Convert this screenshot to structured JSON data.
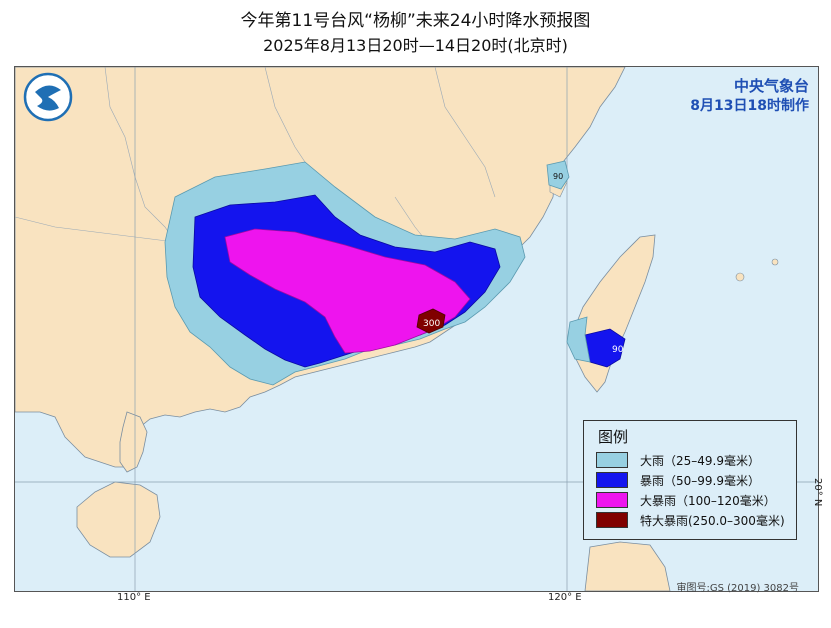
{
  "title": "今年第11号台风“杨柳”未来24小时降水预报图",
  "subtitle": "2025年8月13日20时—14日20时(北京时)",
  "agency": {
    "name": "中央气象台",
    "issued": "8月13日18时制作"
  },
  "legend": {
    "title": "图例",
    "items": [
      {
        "label": "大雨（25–49.9毫米）",
        "color": "#97d0e2"
      },
      {
        "label": "暴雨（50–99.9毫米）",
        "color": "#1414ee"
      },
      {
        "label": "大暴雨（100–120毫米）",
        "color": "#ee14ee"
      },
      {
        "label": "特大暴雨(250.0–300毫米)",
        "color": "#800000"
      }
    ]
  },
  "map_labels": {
    "max_value_mainland": "300",
    "max_value_taiwan": "90",
    "island_label": "90"
  },
  "axes": {
    "lon_110": "110° E",
    "lon_120": "120° E",
    "lat_20": "20° N"
  },
  "footer": "审图号:GS (2019) 3082号",
  "colors": {
    "sea": "#dceef8",
    "land": "#f9e3c0",
    "agency_text": "#1f4fb4"
  }
}
